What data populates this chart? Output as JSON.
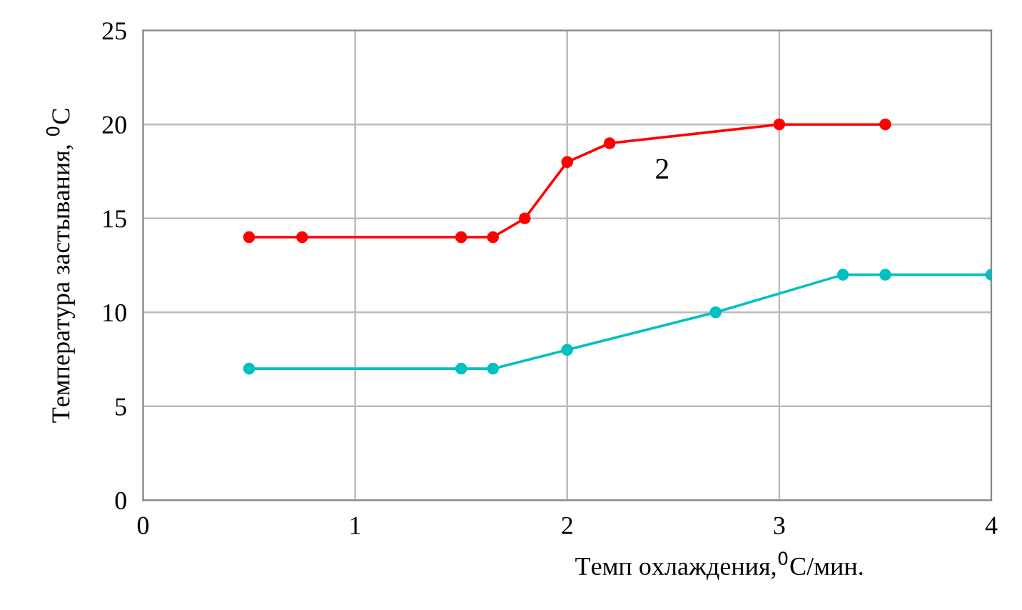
{
  "chart_data": {
    "type": "line",
    "xlabel": "Темп охлаждения,$^{0}$С/мин.",
    "ylabel": "Температура застывания, $^{0}$С",
    "series": [
      {
        "color": "#ff0000",
        "x": [
          0.5,
          0.75,
          1.5,
          1.65,
          1.8,
          2.0,
          2.2,
          3.0,
          3.5
        ],
        "values": [
          14,
          14,
          14,
          14,
          15,
          18,
          19,
          20,
          20
        ]
      },
      {
        "color": "#00c0c0",
        "x": [
          0.5,
          1.5,
          1.65,
          2.0,
          2.7,
          3.3,
          3.5,
          4.0
        ],
        "values": [
          7,
          7,
          7,
          8,
          10,
          12,
          12,
          12
        ]
      }
    ],
    "annotations": [
      "2"
    ],
    "xlim": [
      0,
      4
    ],
    "xticks": [
      0,
      1,
      2,
      3,
      4
    ],
    "ylim": [
      0,
      25
    ],
    "yticks": [
      0,
      5,
      10,
      15,
      20,
      25
    ],
    "grid": true,
    "marker": "circle",
    "line_style": "solid",
    "legend": false
  }
}
